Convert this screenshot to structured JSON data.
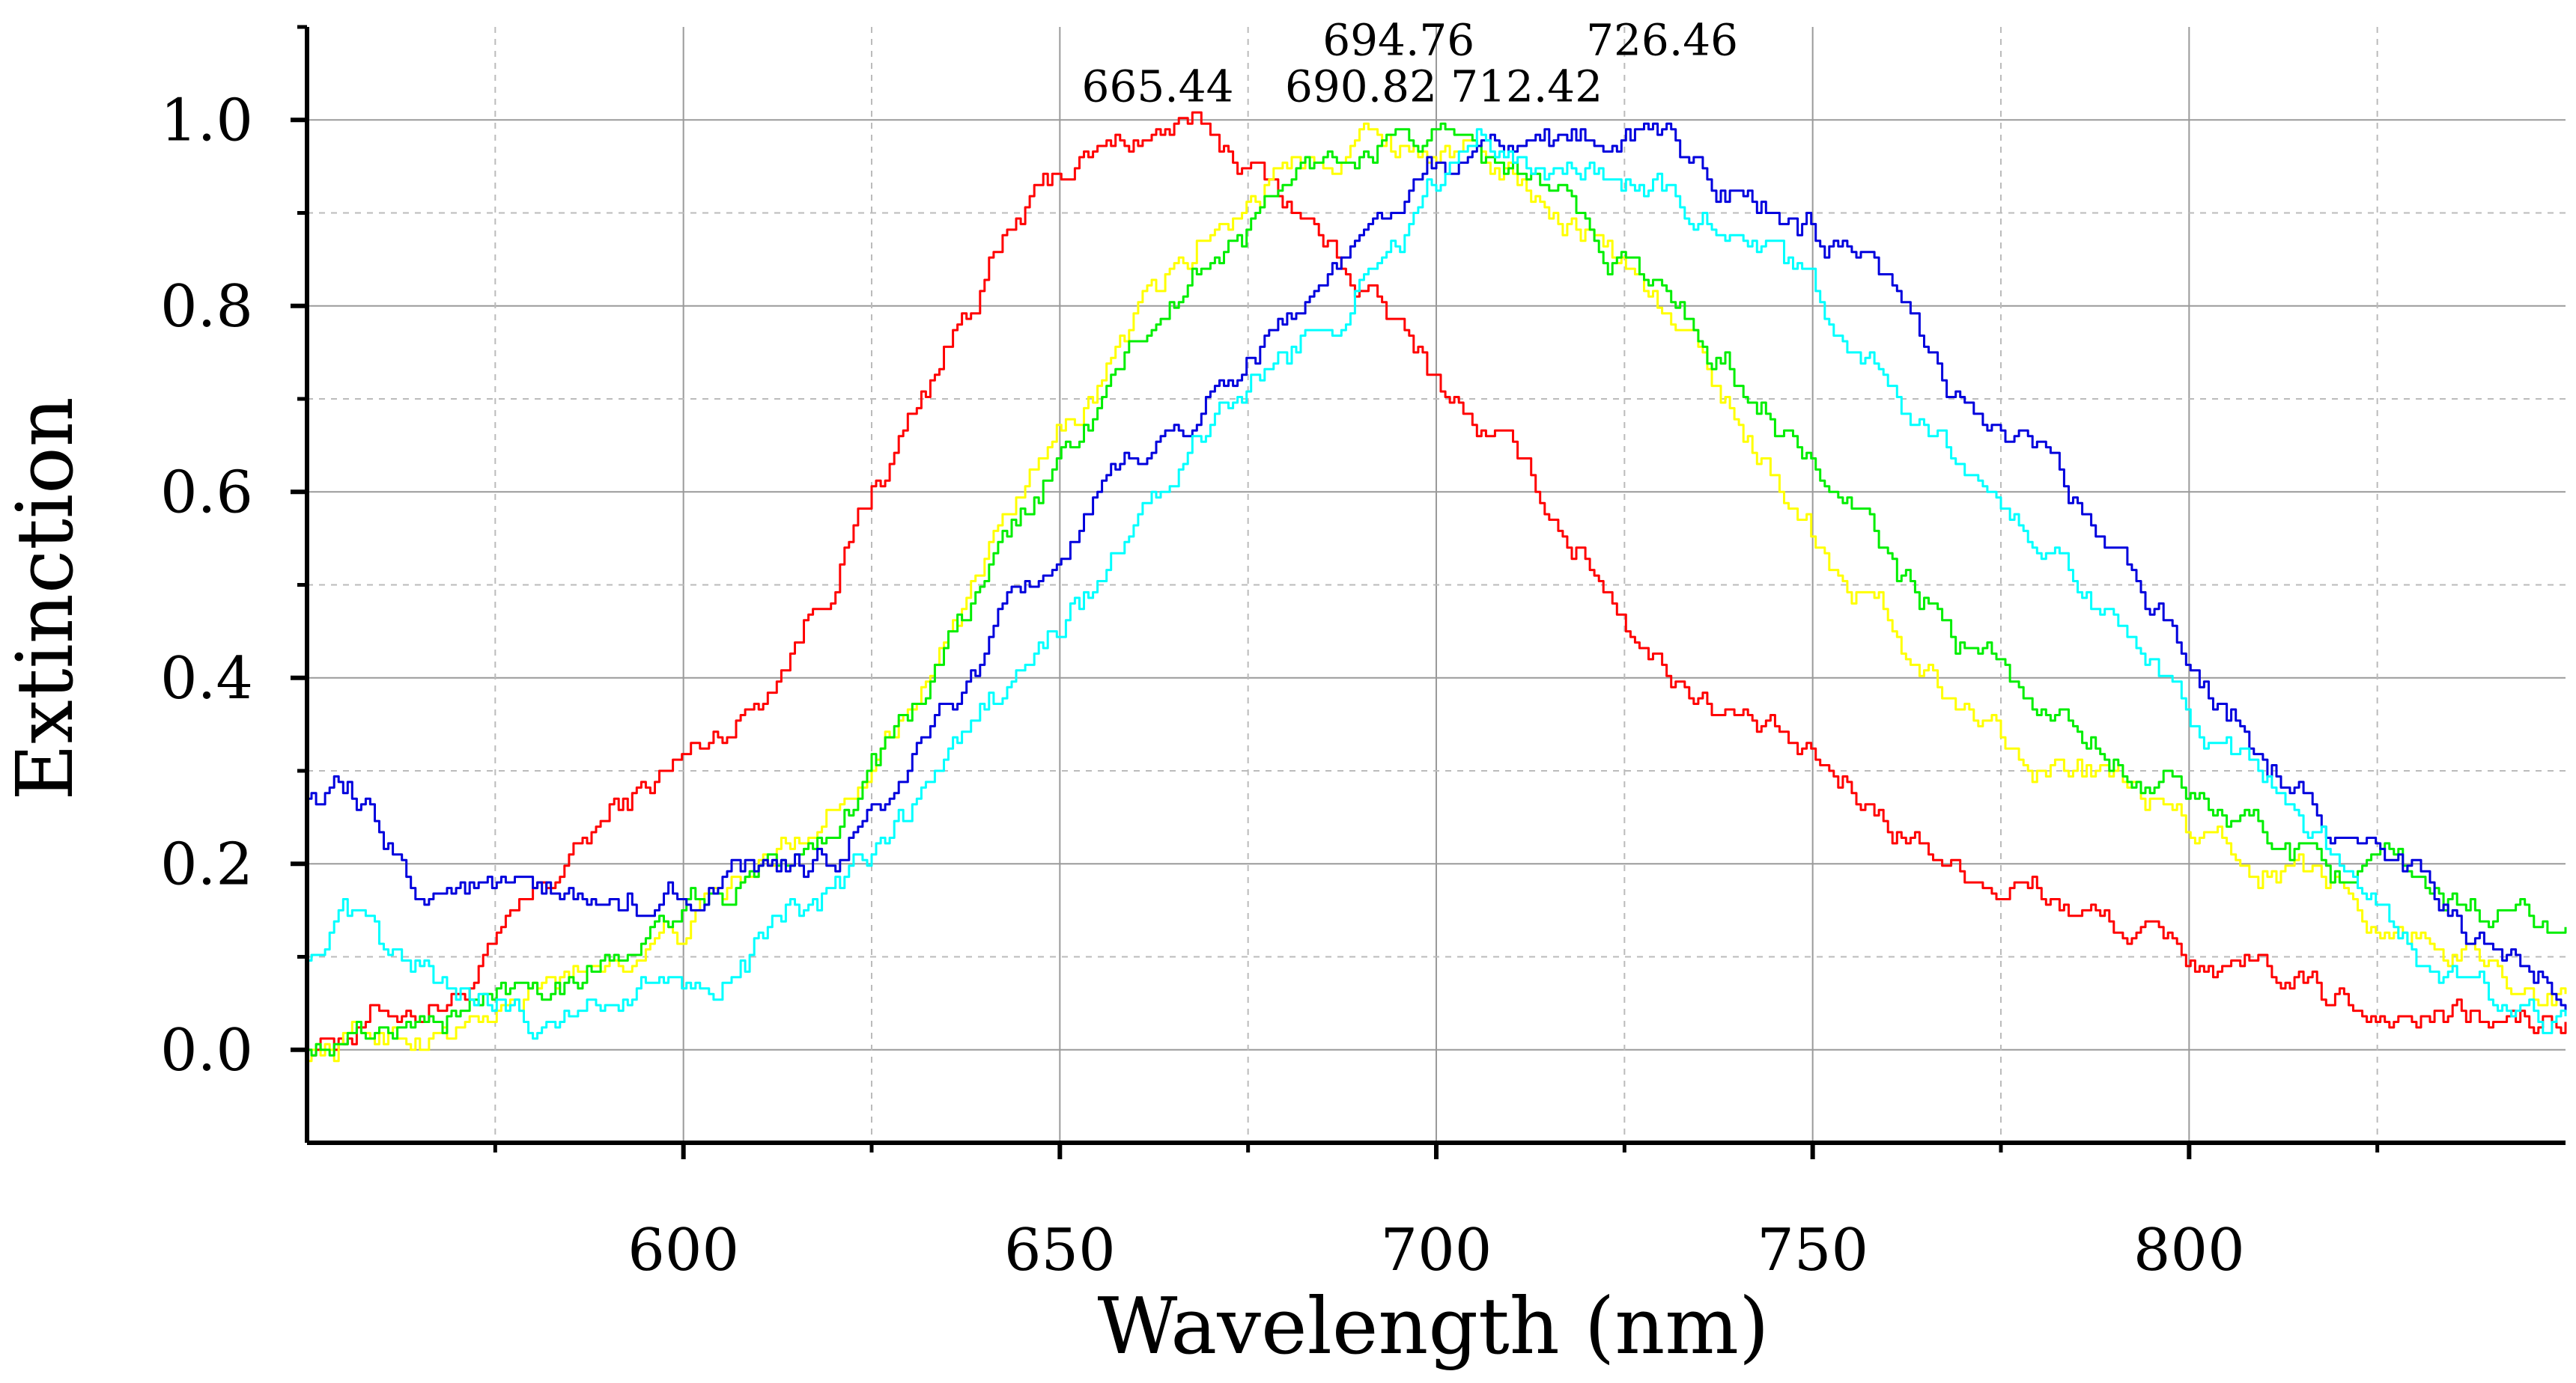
{
  "chart_data": {
    "type": "line",
    "title": "",
    "xlabel": "Wavelength (nm)",
    "ylabel": "Extinction",
    "xlim": [
      550,
      850
    ],
    "ylim": [
      -0.1,
      1.1
    ],
    "x_ticks": [
      {
        "value": 600,
        "label": "600"
      },
      {
        "value": 650,
        "label": "650"
      },
      {
        "value": 700,
        "label": "700"
      },
      {
        "value": 750,
        "label": "750"
      },
      {
        "value": 800,
        "label": "800"
      }
    ],
    "y_ticks": [
      {
        "value": 0.0,
        "label": "0.0"
      },
      {
        "value": 0.2,
        "label": "0.2"
      },
      {
        "value": 0.4,
        "label": "0.4"
      },
      {
        "value": 0.6,
        "label": "0.6"
      },
      {
        "value": 0.8,
        "label": "0.8"
      },
      {
        "value": 1.0,
        "label": "1.0"
      }
    ],
    "x_minor_ticks": [
      575,
      625,
      675,
      725,
      775,
      825
    ],
    "y_minor_ticks": [
      0.1,
      0.3,
      0.5,
      0.7,
      0.9
    ],
    "grid": true,
    "series": [
      {
        "name": "red",
        "color": "#ff0000",
        "peak_label": "665.44",
        "points": [
          [
            550,
            0.01
          ],
          [
            560,
            0.04
          ],
          [
            570,
            0.06
          ],
          [
            580,
            0.15
          ],
          [
            590,
            0.25
          ],
          [
            600,
            0.31
          ],
          [
            610,
            0.38
          ],
          [
            620,
            0.52
          ],
          [
            630,
            0.68
          ],
          [
            640,
            0.84
          ],
          [
            650,
            0.94
          ],
          [
            660,
            0.98
          ],
          [
            665,
            0.99
          ],
          [
            670,
            0.98
          ],
          [
            675,
            0.95
          ],
          [
            680,
            0.92
          ],
          [
            690,
            0.82
          ],
          [
            700,
            0.72
          ],
          [
            710,
            0.63
          ],
          [
            720,
            0.53
          ],
          [
            730,
            0.42
          ],
          [
            740,
            0.36
          ],
          [
            750,
            0.3
          ],
          [
            760,
            0.25
          ],
          [
            770,
            0.2
          ],
          [
            780,
            0.17
          ],
          [
            790,
            0.13
          ],
          [
            800,
            0.1
          ],
          [
            810,
            0.07
          ],
          [
            820,
            0.05
          ],
          [
            830,
            0.04
          ],
          [
            840,
            0.03
          ],
          [
            850,
            0.02
          ]
        ]
      },
      {
        "name": "yellow",
        "color": "#ffff00",
        "peak_label": "690.82",
        "points": [
          [
            550,
            0.0
          ],
          [
            560,
            0.02
          ],
          [
            570,
            0.02
          ],
          [
            580,
            0.05
          ],
          [
            590,
            0.1
          ],
          [
            600,
            0.13
          ],
          [
            610,
            0.19
          ],
          [
            620,
            0.27
          ],
          [
            630,
            0.38
          ],
          [
            640,
            0.52
          ],
          [
            650,
            0.65
          ],
          [
            660,
            0.78
          ],
          [
            670,
            0.88
          ],
          [
            680,
            0.96
          ],
          [
            690,
            0.99
          ],
          [
            700,
            0.97
          ],
          [
            710,
            0.94
          ],
          [
            720,
            0.89
          ],
          [
            730,
            0.8
          ],
          [
            740,
            0.68
          ],
          [
            750,
            0.56
          ],
          [
            760,
            0.46
          ],
          [
            770,
            0.37
          ],
          [
            780,
            0.32
          ],
          [
            790,
            0.28
          ],
          [
            800,
            0.23
          ],
          [
            810,
            0.21
          ],
          [
            820,
            0.17
          ],
          [
            830,
            0.13
          ],
          [
            840,
            0.09
          ],
          [
            850,
            0.06
          ]
        ]
      },
      {
        "name": "green",
        "color": "#00ee00",
        "peak_label": "694.76",
        "points": [
          [
            550,
            0.01
          ],
          [
            560,
            0.02
          ],
          [
            570,
            0.04
          ],
          [
            580,
            0.07
          ],
          [
            590,
            0.11
          ],
          [
            600,
            0.14
          ],
          [
            610,
            0.18
          ],
          [
            620,
            0.25
          ],
          [
            630,
            0.36
          ],
          [
            640,
            0.5
          ],
          [
            650,
            0.63
          ],
          [
            660,
            0.75
          ],
          [
            670,
            0.85
          ],
          [
            680,
            0.93
          ],
          [
            690,
            0.97
          ],
          [
            695,
            0.99
          ],
          [
            700,
            0.97
          ],
          [
            710,
            0.94
          ],
          [
            720,
            0.89
          ],
          [
            730,
            0.81
          ],
          [
            740,
            0.73
          ],
          [
            750,
            0.63
          ],
          [
            760,
            0.52
          ],
          [
            770,
            0.43
          ],
          [
            780,
            0.37
          ],
          [
            790,
            0.32
          ],
          [
            800,
            0.27
          ],
          [
            810,
            0.23
          ],
          [
            820,
            0.2
          ],
          [
            830,
            0.17
          ],
          [
            840,
            0.15
          ],
          [
            850,
            0.12
          ]
        ]
      },
      {
        "name": "blue",
        "color": "#0000dd",
        "peak_label": "726.46",
        "points": [
          [
            550,
            0.28
          ],
          [
            555,
            0.27
          ],
          [
            560,
            0.22
          ],
          [
            565,
            0.17
          ],
          [
            570,
            0.18
          ],
          [
            580,
            0.15
          ],
          [
            590,
            0.15
          ],
          [
            600,
            0.17
          ],
          [
            610,
            0.18
          ],
          [
            620,
            0.2
          ],
          [
            630,
            0.3
          ],
          [
            640,
            0.42
          ],
          [
            650,
            0.53
          ],
          [
            660,
            0.62
          ],
          [
            670,
            0.7
          ],
          [
            680,
            0.79
          ],
          [
            690,
            0.86
          ],
          [
            700,
            0.94
          ],
          [
            710,
            0.97
          ],
          [
            720,
            0.98
          ],
          [
            727,
            0.99
          ],
          [
            740,
            0.92
          ],
          [
            750,
            0.88
          ],
          [
            760,
            0.8
          ],
          [
            770,
            0.7
          ],
          [
            780,
            0.64
          ],
          [
            790,
            0.52
          ],
          [
            800,
            0.42
          ],
          [
            810,
            0.33
          ],
          [
            820,
            0.24
          ],
          [
            830,
            0.17
          ],
          [
            840,
            0.09
          ],
          [
            850,
            0.06
          ]
        ]
      },
      {
        "name": "cyan",
        "color": "#00ffff",
        "peak_label": "712.42",
        "points": [
          [
            550,
            0.11
          ],
          [
            555,
            0.14
          ],
          [
            560,
            0.09
          ],
          [
            570,
            0.06
          ],
          [
            580,
            0.03
          ],
          [
            590,
            0.06
          ],
          [
            600,
            0.07
          ],
          [
            610,
            0.12
          ],
          [
            620,
            0.16
          ],
          [
            630,
            0.24
          ],
          [
            640,
            0.36
          ],
          [
            650,
            0.45
          ],
          [
            660,
            0.56
          ],
          [
            670,
            0.66
          ],
          [
            680,
            0.74
          ],
          [
            690,
            0.83
          ],
          [
            700,
            0.93
          ],
          [
            706,
            0.98
          ],
          [
            712,
            0.97
          ],
          [
            720,
            0.95
          ],
          [
            730,
            0.93
          ],
          [
            740,
            0.89
          ],
          [
            750,
            0.8
          ],
          [
            760,
            0.72
          ],
          [
            770,
            0.61
          ],
          [
            780,
            0.55
          ],
          [
            790,
            0.45
          ],
          [
            800,
            0.36
          ],
          [
            810,
            0.26
          ],
          [
            820,
            0.18
          ],
          [
            830,
            0.1
          ],
          [
            840,
            0.04
          ],
          [
            850,
            0.02
          ]
        ]
      }
    ],
    "annotations": [
      {
        "text": "665.44",
        "x": 663,
        "y": 1.02
      },
      {
        "text": "690.82",
        "x": 690,
        "y": 1.02
      },
      {
        "text": "694.76",
        "x": 695,
        "y": 1.07
      },
      {
        "text": "712.42",
        "x": 712,
        "y": 1.02
      },
      {
        "text": "726.46",
        "x": 730,
        "y": 1.07
      }
    ]
  }
}
